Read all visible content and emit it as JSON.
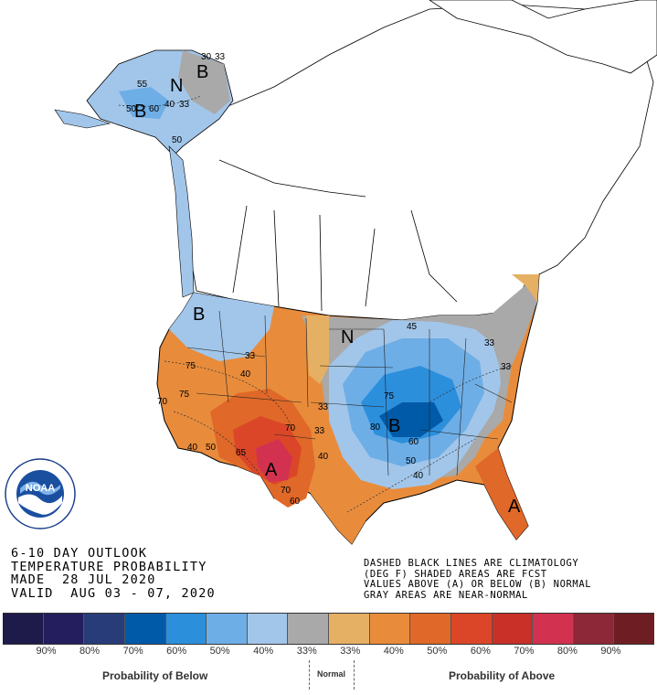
{
  "title": {
    "line1": "6-10 DAY OUTLOOK",
    "line2": "TEMPERATURE PROBABILITY",
    "line3": "MADE  28 JUL 2020",
    "line4": "VALID  AUG 03 - 07, 2020"
  },
  "legend_note": {
    "line1": "DASHED BLACK LINES ARE CLIMATOLOGY",
    "line2": "(DEG F) SHADED AREAS ARE FCST",
    "line3": "VALUES ABOVE (A) OR BELOW (B) NORMAL",
    "line4": "GRAY AREAS ARE NEAR-NORMAL"
  },
  "colorbar": {
    "colors": [
      "#1e1a4a",
      "#241e5e",
      "#283c7a",
      "#005aa8",
      "#2c8fdc",
      "#6eaee6",
      "#a2c6ea",
      "#a9a9a9",
      "#e6b064",
      "#e88c3c",
      "#e06828",
      "#dc4628",
      "#c83028",
      "#d23250",
      "#8c2838",
      "#6e1e22"
    ],
    "tick_labels": [
      "90%",
      "80%",
      "70%",
      "60%",
      "50%",
      "40%",
      "33%",
      "33%",
      "40%",
      "50%",
      "60%",
      "70%",
      "80%",
      "90%"
    ]
  },
  "captions": {
    "below": "Probability of Below",
    "normal": "Normal",
    "above": "Probability of Above"
  },
  "map_labels": {
    "alaska_B": "B",
    "alaska_N": "N",
    "alaska_B2": "B",
    "northwest_B": "B",
    "plains_N": "N",
    "central_B": "B",
    "southwest_A": "A",
    "florida_A": "A",
    "contours": [
      "30",
      "33",
      "55",
      "50",
      "60",
      "40",
      "33",
      "50",
      "33",
      "40",
      "75",
      "75",
      "70",
      "40",
      "50",
      "65",
      "70",
      "70",
      "60",
      "33",
      "33",
      "40",
      "75",
      "80",
      "60",
      "50",
      "40",
      "33",
      "33",
      "45"
    ]
  },
  "logo_text": "NOAA",
  "colors": {
    "below_light": "#a2c6ea",
    "below_mid": "#6eaee6",
    "below_strong": "#2c8fdc",
    "below_deep": "#005aa8",
    "normal_gray": "#a9a9a9",
    "above_light": "#e6b064",
    "above_mid": "#e88c3c",
    "above_strong": "#e06828",
    "above_deep": "#dc4628",
    "above_max": "#d23250"
  }
}
